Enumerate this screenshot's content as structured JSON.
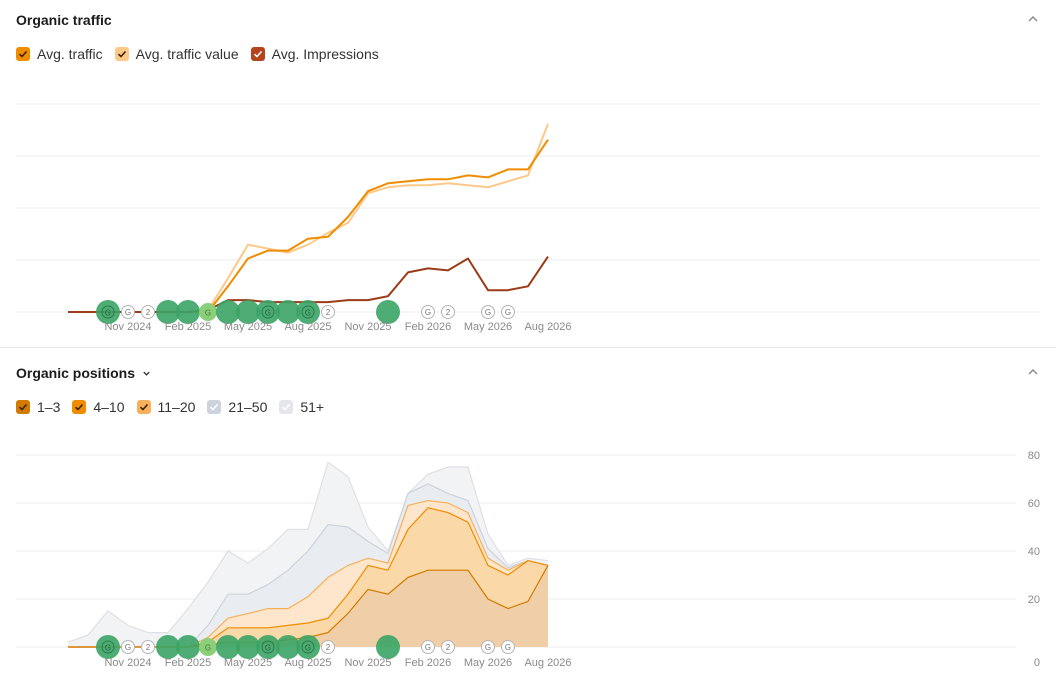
{
  "sections": {
    "traffic": {
      "title": "Organic traffic"
    },
    "positions": {
      "title": "Organic positions"
    }
  },
  "traffic_legend": [
    {
      "label": "Avg. traffic",
      "color": "#f08c00"
    },
    {
      "label": "Avg. traffic value",
      "color": "#fcc98a"
    },
    {
      "label": "Avg. Impressions",
      "color": "#b4441c"
    }
  ],
  "positions_legend": [
    {
      "label": "1–3",
      "color": "#d17a00"
    },
    {
      "label": "4–10",
      "color": "#f08c00"
    },
    {
      "label": "11–20",
      "color": "#f7b05b"
    },
    {
      "label": "21–50",
      "color": "#cdd3dc"
    },
    {
      "label": "51+",
      "color": "#e3e6eb"
    }
  ],
  "x_ticks": [
    "Nov 2024",
    "Feb 2025",
    "May 2025",
    "Aug 2025",
    "Nov 2025",
    "Feb 2026",
    "May 2026",
    "Aug 2026"
  ],
  "chart_data": [
    {
      "type": "line",
      "title": "Organic traffic",
      "x": [
        "Aug 2024",
        "Sep 2024",
        "Oct 2024",
        "Nov 2024",
        "Dec 2024",
        "Jan 2025",
        "Feb 2025",
        "Mar 2025",
        "Apr 2025",
        "May 2025",
        "Jun 2025",
        "Jul 2025",
        "Aug 2025",
        "Sep 2025",
        "Oct 2025",
        "Nov 2025",
        "Dec 2025",
        "Jan 2026",
        "Feb 2026",
        "Mar 2026",
        "Apr 2026",
        "May 2026",
        "Jun 2026",
        "Jul 2026",
        "Aug 2026"
      ],
      "ylim": [
        0,
        100
      ],
      "series": [
        {
          "name": "Avg. traffic",
          "values": [
            0,
            0,
            0,
            0,
            0,
            0,
            0,
            0,
            13,
            27,
            31,
            31,
            37,
            38,
            48,
            61,
            65,
            66,
            67,
            67,
            69,
            68,
            72,
            72,
            87
          ]
        },
        {
          "name": "Avg. traffic value",
          "values": [
            0,
            0,
            0,
            0,
            0,
            0,
            0,
            1,
            17,
            34,
            32,
            30,
            34,
            40,
            45,
            60,
            63,
            64,
            64,
            65,
            64,
            63,
            66,
            69,
            95
          ]
        },
        {
          "name": "Avg. Impressions",
          "values": [
            0,
            0,
            0,
            0,
            0,
            0,
            0,
            1,
            6,
            6,
            5,
            5,
            5,
            5,
            6,
            6,
            8,
            20,
            22,
            21,
            27,
            11,
            11,
            13,
            28
          ]
        }
      ],
      "annotation_markers": [
        {
          "x": "Oct 2024",
          "label": "G"
        },
        {
          "x": "Nov 2024",
          "label": "G"
        },
        {
          "x": "Dec 2024",
          "label": "2"
        },
        {
          "x": "Jan 2025",
          "label": ""
        },
        {
          "x": "Feb 2025",
          "label": ""
        },
        {
          "x": "Mar 2025",
          "label": "G"
        },
        {
          "x": "Apr 2025",
          "label": ""
        },
        {
          "x": "May 2025",
          "label": ""
        },
        {
          "x": "Jun 2025",
          "label": "G"
        },
        {
          "x": "Jul 2025",
          "label": ""
        },
        {
          "x": "Aug 2025",
          "label": "G"
        },
        {
          "x": "Sep 2025",
          "label": "2"
        },
        {
          "x": "Dec 2025",
          "label": ""
        },
        {
          "x": "Feb 2026",
          "label": "G"
        },
        {
          "x": "Mar 2026",
          "label": "2"
        },
        {
          "x": "May 2026",
          "label": "G"
        },
        {
          "x": "Jun 2026",
          "label": "G"
        }
      ]
    },
    {
      "type": "area",
      "title": "Organic positions",
      "x": [
        "Aug 2024",
        "Sep 2024",
        "Oct 2024",
        "Nov 2024",
        "Dec 2024",
        "Jan 2025",
        "Feb 2025",
        "Mar 2025",
        "Apr 2025",
        "May 2025",
        "Jun 2025",
        "Jul 2025",
        "Aug 2025",
        "Sep 2025",
        "Oct 2025",
        "Nov 2025",
        "Dec 2025",
        "Jan 2026",
        "Feb 2026",
        "Mar 2026",
        "Apr 2026",
        "May 2026",
        "Jun 2026",
        "Jul 2026",
        "Aug 2026"
      ],
      "ylim": [
        0,
        80
      ],
      "y_ticks": [
        0,
        20,
        40,
        60,
        80
      ],
      "stacked": true,
      "series": [
        {
          "name": "1–3",
          "values": [
            0,
            0,
            0,
            0,
            0,
            0,
            0,
            1,
            2,
            2,
            2,
            3,
            4,
            6,
            14,
            24,
            22,
            29,
            32,
            32,
            32,
            20,
            16,
            19,
            34
          ]
        },
        {
          "name": "4–10",
          "values": [
            0,
            0,
            0,
            0,
            0,
            0,
            0,
            1,
            6,
            6,
            6,
            6,
            6,
            6,
            8,
            10,
            10,
            20,
            26,
            24,
            20,
            14,
            14,
            17,
            0
          ]
        },
        {
          "name": "11–20",
          "values": [
            0,
            0,
            0,
            0,
            0,
            0,
            0,
            2,
            4,
            6,
            8,
            7,
            11,
            17,
            12,
            3,
            3,
            10,
            3,
            4,
            4,
            3,
            2,
            0,
            0
          ]
        },
        {
          "name": "21–50",
          "values": [
            0,
            0,
            0,
            0,
            0,
            0,
            0,
            5,
            10,
            8,
            10,
            16,
            19,
            22,
            16,
            7,
            4,
            5,
            7,
            4,
            5,
            4,
            1,
            0,
            0
          ]
        },
        {
          "name": "51+",
          "values": [
            2,
            5,
            15,
            9,
            6,
            6,
            16,
            18,
            18,
            13,
            15,
            17,
            9,
            26,
            21,
            6,
            1,
            0,
            4,
            11,
            14,
            6,
            1,
            1,
            2
          ]
        }
      ],
      "annotation_markers": [
        {
          "x": "Oct 2024",
          "label": "G"
        },
        {
          "x": "Nov 2024",
          "label": "G"
        },
        {
          "x": "Dec 2024",
          "label": "2"
        },
        {
          "x": "Jan 2025",
          "label": ""
        },
        {
          "x": "Feb 2025",
          "label": ""
        },
        {
          "x": "Mar 2025",
          "label": "G"
        },
        {
          "x": "Apr 2025",
          "label": ""
        },
        {
          "x": "May 2025",
          "label": ""
        },
        {
          "x": "Jun 2025",
          "label": "G"
        },
        {
          "x": "Jul 2025",
          "label": ""
        },
        {
          "x": "Aug 2025",
          "label": "G"
        },
        {
          "x": "Sep 2025",
          "label": "2"
        },
        {
          "x": "Dec 2025",
          "label": ""
        },
        {
          "x": "Feb 2026",
          "label": "G"
        },
        {
          "x": "Mar 2026",
          "label": "2"
        },
        {
          "x": "May 2026",
          "label": "G"
        },
        {
          "x": "Jun 2026",
          "label": "G"
        }
      ]
    }
  ]
}
